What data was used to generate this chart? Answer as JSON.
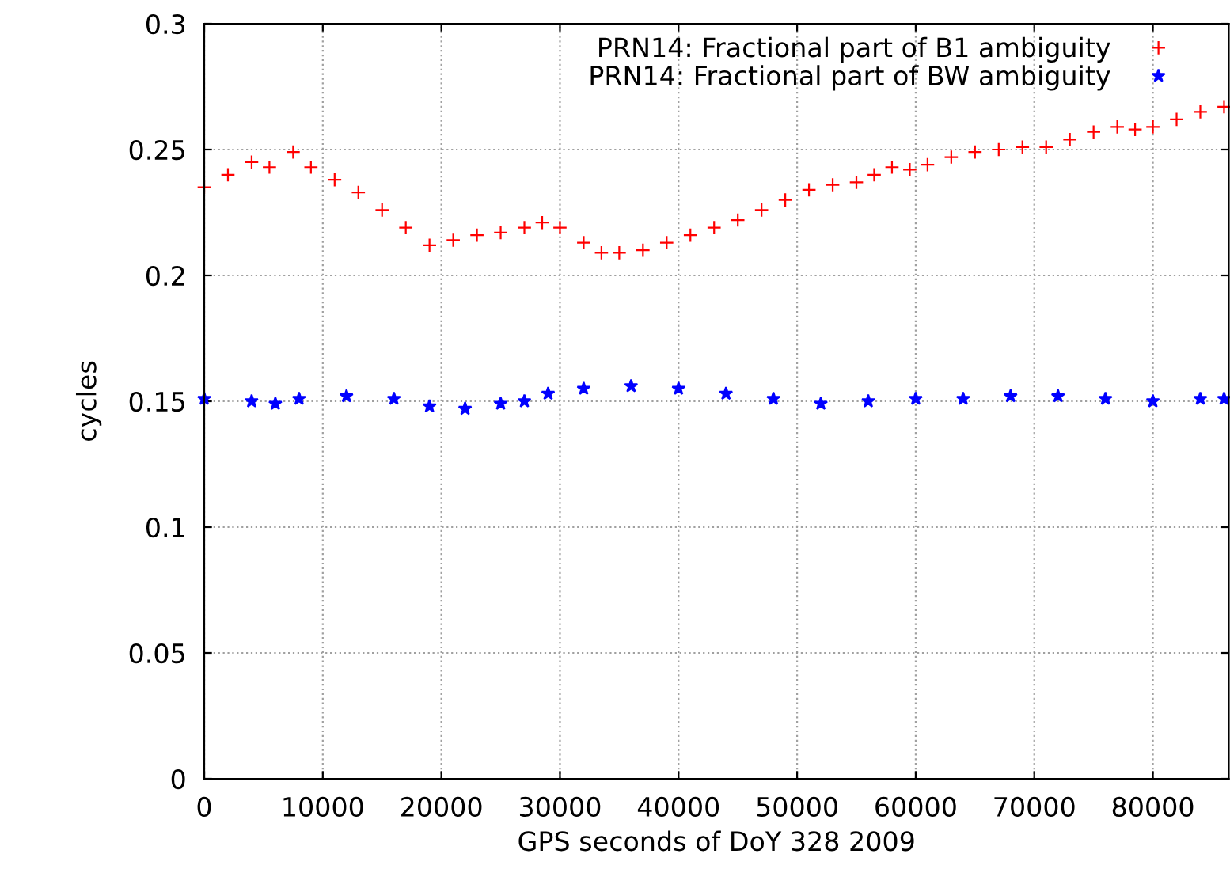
{
  "chart_data": {
    "type": "scatter",
    "xlabel": "GPS seconds of DoY 328 2009",
    "ylabel": "cycles",
    "xlim": [
      0,
      86400
    ],
    "ylim": [
      0,
      0.3
    ],
    "xticks": [
      0,
      10000,
      20000,
      30000,
      40000,
      50000,
      60000,
      70000,
      80000
    ],
    "yticks": [
      0,
      0.05,
      0.1,
      0.15,
      0.2,
      0.25,
      0.3
    ],
    "grid": true,
    "legend": "top right",
    "series": [
      {
        "name": "PRN14: Fractional part of B1 ambiguity",
        "color": "#ff0000",
        "marker": "cross",
        "x": [
          0,
          2000,
          4000,
          5500,
          7500,
          9000,
          11000,
          13000,
          15000,
          17000,
          19000,
          21000,
          23000,
          25000,
          27000,
          28500,
          30000,
          32000,
          33500,
          35000,
          37000,
          39000,
          41000,
          43000,
          45000,
          47000,
          49000,
          51000,
          53000,
          55000,
          56500,
          58000,
          59500,
          61000,
          63000,
          65000,
          67000,
          69000,
          71000,
          73000,
          75000,
          77000,
          78500,
          80000,
          82000,
          84000,
          86000
        ],
        "values": [
          0.235,
          0.24,
          0.245,
          0.243,
          0.249,
          0.243,
          0.238,
          0.233,
          0.226,
          0.219,
          0.212,
          0.214,
          0.216,
          0.217,
          0.219,
          0.221,
          0.219,
          0.213,
          0.209,
          0.209,
          0.21,
          0.213,
          0.216,
          0.219,
          0.222,
          0.226,
          0.23,
          0.234,
          0.236,
          0.237,
          0.24,
          0.243,
          0.242,
          0.244,
          0.247,
          0.249,
          0.25,
          0.251,
          0.251,
          0.254,
          0.257,
          0.259,
          0.258,
          0.259,
          0.262,
          0.265,
          0.267
        ]
      },
      {
        "name": "PRN14: Fractional part of BW ambiguity",
        "color": "#0000ff",
        "marker": "star",
        "x": [
          0,
          4000,
          6000,
          8000,
          12000,
          16000,
          19000,
          22000,
          25000,
          27000,
          29000,
          32000,
          36000,
          40000,
          44000,
          48000,
          52000,
          56000,
          60000,
          64000,
          68000,
          72000,
          76000,
          80000,
          84000,
          86000
        ],
        "values": [
          0.151,
          0.15,
          0.149,
          0.151,
          0.152,
          0.151,
          0.148,
          0.147,
          0.149,
          0.15,
          0.153,
          0.155,
          0.156,
          0.155,
          0.153,
          0.151,
          0.149,
          0.15,
          0.151,
          0.151,
          0.152,
          0.152,
          0.151,
          0.15,
          0.151,
          0.151
        ]
      }
    ]
  }
}
